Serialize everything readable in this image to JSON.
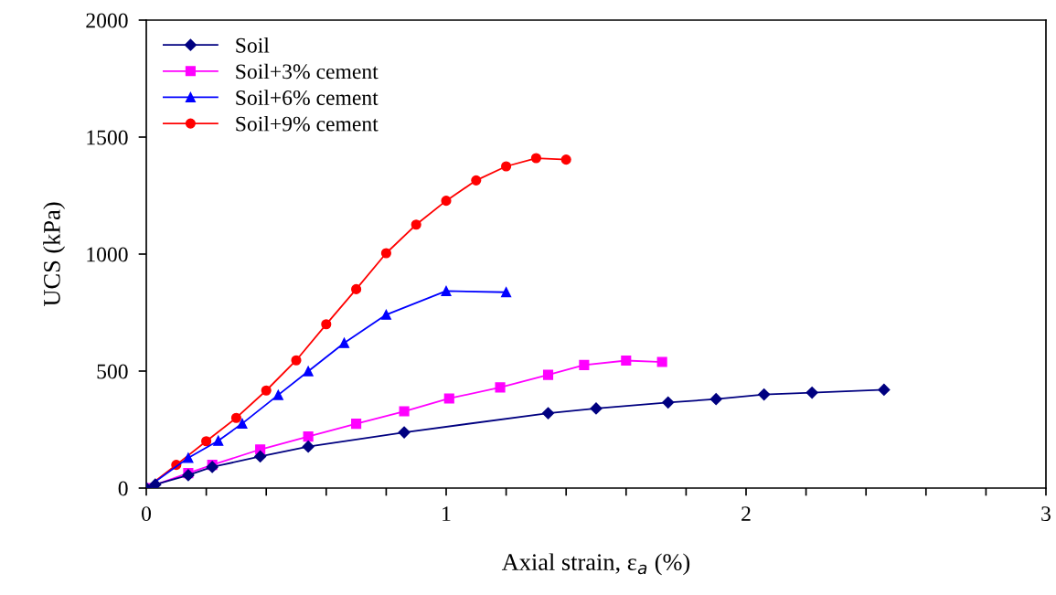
{
  "chart_data": {
    "type": "line",
    "xlabel": "Axial strain, ε$_{a}$ (%)",
    "ylabel": "UCS (kPa)",
    "xlim": [
      0,
      3
    ],
    "ylim": [
      0,
      2000
    ],
    "xticks": [
      0,
      {
        "value": 0.2,
        "label": null
      },
      {
        "value": 0.4,
        "label": null
      },
      {
        "value": 0.6,
        "label": null
      },
      {
        "value": 0.8,
        "label": null
      },
      1,
      {
        "value": 1.2,
        "label": null
      },
      {
        "value": 1.4,
        "label": null
      },
      {
        "value": 1.6,
        "label": null
      },
      {
        "value": 1.8,
        "label": null
      },
      2,
      {
        "value": 2.2,
        "label": null
      },
      {
        "value": 2.4,
        "label": null
      },
      {
        "value": 2.6,
        "label": null
      },
      {
        "value": 2.8,
        "label": null
      },
      3
    ],
    "yticks": [
      0,
      500,
      1000,
      1500,
      2000
    ],
    "grid": false,
    "legend": "top left",
    "series": [
      {
        "name": "Soil",
        "color": "#000080",
        "marker": "diamond",
        "x": [
          0,
          0.03,
          0.14,
          0.22,
          0.38,
          0.54,
          0.86,
          1.34,
          1.5,
          1.74,
          1.9,
          2.06,
          2.22,
          2.46
        ],
        "values": [
          0,
          15,
          55,
          90,
          135,
          177,
          238,
          320,
          340,
          366,
          380,
          400,
          408,
          420
        ]
      },
      {
        "name": "Soil+3% cement",
        "color": "#ff00ff",
        "marker": "square",
        "x": [
          0,
          0.14,
          0.22,
          0.38,
          0.54,
          0.7,
          0.86,
          1.01,
          1.18,
          1.34,
          1.46,
          1.6,
          1.72
        ],
        "values": [
          0,
          64,
          99,
          165,
          220,
          275,
          328,
          383,
          430,
          484,
          526,
          545,
          539
        ]
      },
      {
        "name": "Soil+6% cement",
        "color": "#0000ff",
        "marker": "triangle",
        "x": [
          0,
          0.14,
          0.24,
          0.32,
          0.44,
          0.54,
          0.66,
          0.8,
          1.0,
          1.2
        ],
        "values": [
          0,
          129,
          202,
          276,
          398,
          499,
          620,
          741,
          842,
          837
        ]
      },
      {
        "name": "Soil+9% cement",
        "color": "#ff0000",
        "marker": "circle",
        "x": [
          0,
          0.1,
          0.2,
          0.3,
          0.4,
          0.5,
          0.6,
          0.7,
          0.8,
          0.9,
          1.0,
          1.1,
          1.2,
          1.3,
          1.4
        ],
        "values": [
          0,
          99,
          200,
          300,
          417,
          546,
          700,
          850,
          1004,
          1126,
          1228,
          1315,
          1375,
          1410,
          1404
        ]
      }
    ]
  }
}
